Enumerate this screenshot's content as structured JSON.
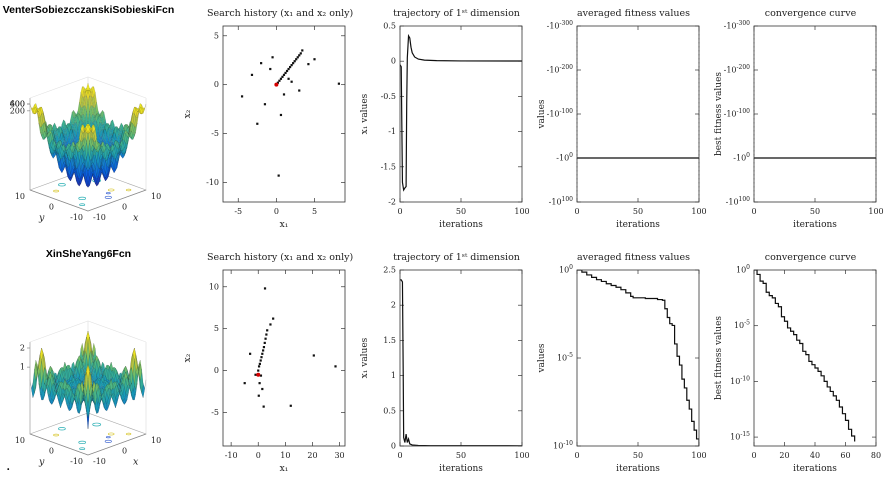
{
  "figure": {
    "background": "#ffffff",
    "footnote_dot": "."
  },
  "palette": {
    "line": "#0f0f0f",
    "marker": "#111111",
    "optimum": "#d40000",
    "axis": "#333333",
    "dotted": "#555555"
  },
  "chart_data": [
    {
      "id": "venter-surface",
      "type": "surface3d",
      "title": "VenterSobiezcczanskiSobieskiFcn",
      "function": "venter",
      "xlabel": "x",
      "ylabel": "y",
      "x_range": [
        -10,
        10
      ],
      "y_range": [
        -10,
        10
      ],
      "xy_ticks": [
        -10,
        0,
        10
      ],
      "z_ticks": [
        200,
        400,
        600
      ]
    },
    {
      "id": "venter-search-history",
      "type": "scatter",
      "title": "Search history (x₁ and x₂ only)",
      "xlabel": "x₁",
      "ylabel": "x₂",
      "xlim": [
        -7,
        9
      ],
      "ylim": [
        -12,
        6
      ],
      "xticks": [
        -5,
        0,
        5
      ],
      "yticks": [
        -10,
        -5,
        0,
        5
      ],
      "points": [
        [
          -4.5,
          -1.2
        ],
        [
          -3.2,
          1
        ],
        [
          -2.5,
          -4
        ],
        [
          -2,
          2.2
        ],
        [
          -1.5,
          -2
        ],
        [
          -0.8,
          1.6
        ],
        [
          -0.5,
          2.8
        ],
        [
          0,
          0
        ],
        [
          0.2,
          0.2
        ],
        [
          0.3,
          -9.3
        ],
        [
          0.4,
          0.4
        ],
        [
          0.6,
          -3.1
        ],
        [
          0.6,
          0.6
        ],
        [
          0.8,
          0.8
        ],
        [
          1,
          -1
        ],
        [
          1,
          1
        ],
        [
          1.2,
          1.2
        ],
        [
          1.4,
          1.4
        ],
        [
          1.6,
          0.6
        ],
        [
          1.6,
          1.6
        ],
        [
          1.8,
          1.8
        ],
        [
          2,
          0.3
        ],
        [
          2,
          2
        ],
        [
          2.2,
          2.2
        ],
        [
          2.4,
          2.4
        ],
        [
          2.6,
          2.6
        ],
        [
          2.8,
          2.8
        ],
        [
          3,
          -0.6
        ],
        [
          3,
          3
        ],
        [
          3.2,
          3.2
        ],
        [
          3.4,
          3.5
        ],
        [
          4.2,
          2.1
        ],
        [
          5,
          2.6
        ],
        [
          8.2,
          0.1
        ]
      ],
      "optimum": [
        0,
        0
      ]
    },
    {
      "id": "venter-trajectory",
      "type": "line",
      "title": "trajectory of 1ˢᵗ dimension",
      "xlabel": "iterations",
      "ylabel": "x₁ values",
      "xlim": [
        0,
        100
      ],
      "ylim": [
        -2,
        0.5
      ],
      "xticks": [
        0,
        50,
        100
      ],
      "yticks": [
        -2,
        -1.5,
        -1,
        -0.5,
        0,
        0.5
      ],
      "points": [
        [
          0,
          -0.05
        ],
        [
          1,
          -0.08
        ],
        [
          2,
          -1.72
        ],
        [
          3,
          -1.83
        ],
        [
          4,
          -1.8
        ],
        [
          5,
          -1.78
        ],
        [
          5.5,
          -0.6
        ],
        [
          6,
          0.05
        ],
        [
          7,
          0.36
        ],
        [
          8,
          0.33
        ],
        [
          9,
          0.2
        ],
        [
          10,
          0.12
        ],
        [
          12,
          0.06
        ],
        [
          15,
          0.03
        ],
        [
          20,
          0.015
        ],
        [
          30,
          0.008
        ],
        [
          50,
          0.004
        ],
        [
          100,
          0.003
        ]
      ]
    },
    {
      "id": "venter-averaged-fitness",
      "type": "line",
      "title": "averaged fitness values",
      "xlabel": "iterations",
      "ylabel": "values",
      "yscale": "neg-log10-exponent",
      "xlim": [
        0,
        100
      ],
      "ylim": [
        100,
        -300
      ],
      "xticks": [
        0,
        50,
        100
      ],
      "yticks": [
        {
          "v": -300,
          "label": "-10^-300"
        },
        {
          "v": -200,
          "label": "-10^-200"
        },
        {
          "v": -100,
          "label": "-10^-100"
        },
        {
          "v": 0,
          "label": "-10^0"
        },
        {
          "v": 100,
          "label": "-10^100"
        }
      ],
      "vlines": [
        0,
        100
      ],
      "points": [
        [
          0,
          0
        ],
        [
          100,
          0
        ]
      ]
    },
    {
      "id": "venter-convergence",
      "type": "line",
      "title": "convergence curve",
      "xlabel": "iterations",
      "ylabel": "best fitness values",
      "yscale": "neg-log10-exponent",
      "xlim": [
        0,
        100
      ],
      "ylim": [
        100,
        -300
      ],
      "xticks": [
        0,
        50,
        100
      ],
      "yticks": [
        {
          "v": -300,
          "label": "-10^-300"
        },
        {
          "v": -200,
          "label": "-10^-200"
        },
        {
          "v": -100,
          "label": "-10^-100"
        },
        {
          "v": 0,
          "label": "-10^0"
        },
        {
          "v": 100,
          "label": "-10^100"
        }
      ],
      "vlines": [
        0,
        100
      ],
      "points": [
        [
          0,
          0
        ],
        [
          100,
          0
        ]
      ]
    },
    {
      "id": "xinsheyang-surface",
      "type": "surface3d",
      "title": "XinSheYang6Fcn",
      "function": "xinsheyang6",
      "xlabel": "x",
      "ylabel": "y",
      "x_range": [
        -10,
        10
      ],
      "y_range": [
        -10,
        10
      ],
      "xy_ticks": [
        -10,
        0,
        10
      ],
      "z_ticks": [
        1,
        2
      ]
    },
    {
      "id": "xinsheyang-search-history",
      "type": "scatter",
      "title": "Search history (x₁ and x₂ only)",
      "xlabel": "x₁",
      "ylabel": "x₂",
      "xlim": [
        -13,
        32
      ],
      "ylim": [
        -9,
        12
      ],
      "xticks": [
        -10,
        0,
        10,
        20,
        30
      ],
      "yticks": [
        -5,
        0,
        5,
        10
      ],
      "points": [
        [
          -5,
          -1.5
        ],
        [
          -3,
          2
        ],
        [
          -1,
          -0.5
        ],
        [
          0,
          0
        ],
        [
          0.2,
          -3
        ],
        [
          0.3,
          0.5
        ],
        [
          0.5,
          -1.5
        ],
        [
          0.6,
          0.8
        ],
        [
          0.9,
          1.2
        ],
        [
          1,
          -0.6
        ],
        [
          1.2,
          1.6
        ],
        [
          1.5,
          -2.2
        ],
        [
          1.5,
          2
        ],
        [
          1.8,
          2.4
        ],
        [
          2,
          -4.3
        ],
        [
          2.1,
          2.8
        ],
        [
          2.4,
          3.3
        ],
        [
          2.5,
          9.8
        ],
        [
          2.7,
          3.8
        ],
        [
          3,
          4.3
        ],
        [
          3.3,
          4.8
        ],
        [
          4.5,
          5.5
        ],
        [
          5.5,
          6.2
        ],
        [
          12,
          -4.2
        ],
        [
          20.5,
          1.8
        ],
        [
          28.5,
          0.5
        ]
      ],
      "optimum": [
        0,
        -0.5
      ]
    },
    {
      "id": "xinsheyang-trajectory",
      "type": "line",
      "title": "trajectory of 1ˢᵗ dimension",
      "xlabel": "iterations",
      "ylabel": "x₁ values",
      "xlim": [
        0,
        100
      ],
      "ylim": [
        0,
        2.5
      ],
      "xticks": [
        0,
        50,
        100
      ],
      "yticks": [
        0,
        0.5,
        1,
        1.5,
        2,
        2.5
      ],
      "points": [
        [
          0,
          2.36
        ],
        [
          1,
          2.36
        ],
        [
          2,
          2.33
        ],
        [
          2.6,
          1.1
        ],
        [
          3,
          0.12
        ],
        [
          4,
          0.05
        ],
        [
          5,
          0.17
        ],
        [
          6,
          0.05
        ],
        [
          7,
          0.1
        ],
        [
          8,
          0.03
        ],
        [
          10,
          0.015
        ],
        [
          15,
          0.008
        ],
        [
          25,
          0.004
        ],
        [
          100,
          0.003
        ]
      ]
    },
    {
      "id": "xinsheyang-averaged-fitness",
      "type": "line",
      "title": "averaged fitness values",
      "xlabel": "iterations",
      "ylabel": "values",
      "yscale": "log10-exponent",
      "step": true,
      "xlim": [
        0,
        100
      ],
      "ylim": [
        -10,
        0
      ],
      "xticks": [
        0,
        50,
        100
      ],
      "yticks": [
        {
          "v": 0,
          "label": "10^0"
        },
        {
          "v": -5,
          "label": "10^-5"
        },
        {
          "v": -10,
          "label": "10^-10"
        }
      ],
      "points": [
        [
          0,
          0
        ],
        [
          4,
          -0.12
        ],
        [
          8,
          -0.28
        ],
        [
          12,
          -0.42
        ],
        [
          16,
          -0.55
        ],
        [
          20,
          -0.65
        ],
        [
          24,
          -0.78
        ],
        [
          28,
          -0.88
        ],
        [
          32,
          -0.98
        ],
        [
          36,
          -1.12
        ],
        [
          40,
          -1.3
        ],
        [
          44,
          -1.5
        ],
        [
          46,
          -1.58
        ],
        [
          56,
          -1.62
        ],
        [
          66,
          -1.68
        ],
        [
          70,
          -1.72
        ],
        [
          72,
          -2.2
        ],
        [
          74,
          -2.7
        ],
        [
          76,
          -3.05
        ],
        [
          78,
          -3.15
        ],
        [
          80,
          -4.2
        ],
        [
          82,
          -4.9
        ],
        [
          84,
          -5.4
        ],
        [
          86,
          -6.2
        ],
        [
          88,
          -6.7
        ],
        [
          90,
          -7.4
        ],
        [
          92,
          -7.9
        ],
        [
          94,
          -8.6
        ],
        [
          96,
          -9.1
        ],
        [
          98,
          -9.6
        ],
        [
          100,
          -10
        ]
      ]
    },
    {
      "id": "xinsheyang-convergence",
      "type": "line",
      "title": "convergence curve",
      "xlabel": "iterations",
      "ylabel": "best fitness values",
      "yscale": "log10-exponent",
      "step": true,
      "xlim": [
        0,
        80
      ],
      "ylim": [
        -15.8,
        0
      ],
      "xticks": [
        0,
        20,
        40,
        60,
        80
      ],
      "yticks": [
        {
          "v": 0,
          "label": "10^0"
        },
        {
          "v": -5,
          "label": "10^-5"
        },
        {
          "v": -10,
          "label": "10^-10"
        },
        {
          "v": -15,
          "label": "10^-15"
        }
      ],
      "points": [
        [
          0,
          0
        ],
        [
          2,
          -0.4
        ],
        [
          4,
          -1
        ],
        [
          6,
          -1.2
        ],
        [
          8,
          -2
        ],
        [
          10,
          -2.3
        ],
        [
          12,
          -2.5
        ],
        [
          14,
          -3
        ],
        [
          16,
          -3.3
        ],
        [
          18,
          -4.2
        ],
        [
          20,
          -4.6
        ],
        [
          22,
          -5.2
        ],
        [
          24,
          -5.5
        ],
        [
          26,
          -5.8
        ],
        [
          28,
          -6.3
        ],
        [
          30,
          -6.6
        ],
        [
          32,
          -7.3
        ],
        [
          34,
          -7.6
        ],
        [
          36,
          -8.2
        ],
        [
          38,
          -8.5
        ],
        [
          40,
          -8.8
        ],
        [
          42,
          -9.1
        ],
        [
          44,
          -9.5
        ],
        [
          46,
          -10
        ],
        [
          48,
          -10.5
        ],
        [
          50,
          -10.9
        ],
        [
          52,
          -11.3
        ],
        [
          54,
          -11.7
        ],
        [
          56,
          -12.3
        ],
        [
          58,
          -12.9
        ],
        [
          60,
          -13.5
        ],
        [
          62,
          -14.3
        ],
        [
          64,
          -14.9
        ],
        [
          66,
          -15.4
        ]
      ]
    }
  ]
}
